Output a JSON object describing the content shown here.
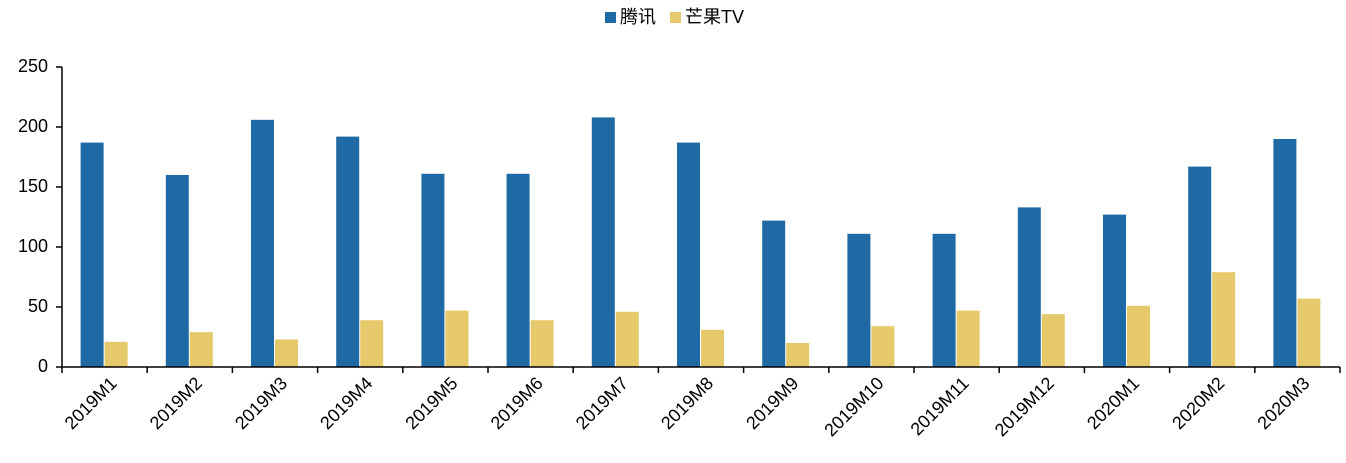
{
  "chart_data": {
    "type": "bar",
    "categories": [
      "2019M1",
      "2019M2",
      "2019M3",
      "2019M4",
      "2019M5",
      "2019M6",
      "2019M7",
      "2019M8",
      "2019M9",
      "2019M10",
      "2019M11",
      "2019M12",
      "2020M1",
      "2020M2",
      "2020M3"
    ],
    "series": [
      {
        "name": "腾讯",
        "color": "#1f6aa5",
        "values": [
          187,
          160,
          206,
          192,
          161,
          161,
          208,
          187,
          122,
          111,
          111,
          133,
          127,
          167,
          190
        ]
      },
      {
        "name": "芒果TV",
        "color": "#e5c96a",
        "values": [
          21,
          29,
          23,
          39,
          47,
          39,
          46,
          31,
          20,
          34,
          47,
          44,
          51,
          79,
          57
        ]
      }
    ],
    "ylim": [
      0,
      250
    ],
    "yticks": [
      0,
      50,
      100,
      150,
      200,
      250
    ],
    "grid": false,
    "legend": "top"
  }
}
